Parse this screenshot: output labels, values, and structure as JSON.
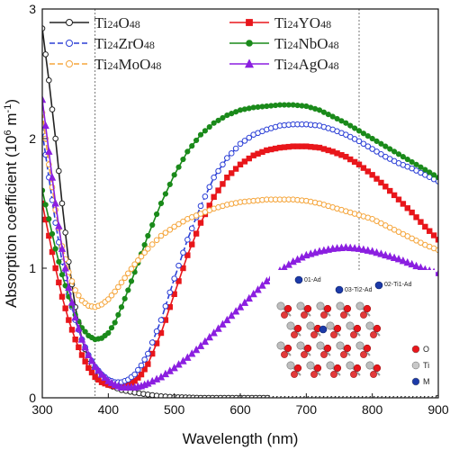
{
  "chart_data": {
    "type": "line",
    "xlabel": "Wavelength (nm)",
    "ylabel": "Absorption coefficient (10",
    "ylabel_sup": "6",
    "ylabel_unit": " m",
    "ylabel_unit_sup": "-1",
    "ylabel_close": ")",
    "xlim": [
      300,
      900
    ],
    "ylim": [
      0,
      3
    ],
    "x_ticks": [
      300,
      400,
      500,
      600,
      700,
      800,
      900
    ],
    "y_ticks": [
      0,
      1,
      2,
      3
    ],
    "x_tick_labels": [
      "300",
      "400",
      "500",
      "600",
      "700",
      "800",
      "900"
    ],
    "y_tick_labels": [
      "0",
      "1",
      "2",
      "3"
    ],
    "reference_lines_x": [
      380,
      780
    ],
    "legend_placement": "top",
    "series": [
      {
        "name": "Ti24O48",
        "base": "Ti",
        "sub1": "24",
        "mid": "O",
        "sub2": "48",
        "color": "#222222",
        "marker": "open-circle",
        "dash": "none",
        "points": [
          [
            300,
            2.85
          ],
          [
            310,
            2.45
          ],
          [
            320,
            2.0
          ],
          [
            330,
            1.5
          ],
          [
            340,
            1.05
          ],
          [
            350,
            0.7
          ],
          [
            360,
            0.45
          ],
          [
            370,
            0.3
          ],
          [
            380,
            0.2
          ],
          [
            390,
            0.14
          ],
          [
            400,
            0.1
          ],
          [
            420,
            0.06
          ],
          [
            440,
            0.04
          ],
          [
            460,
            0.025
          ],
          [
            480,
            0.012
          ],
          [
            500,
            0.005
          ],
          [
            540,
            0.0
          ],
          [
            600,
            0.0
          ],
          [
            700,
            0.0
          ],
          [
            800,
            0.0
          ],
          [
            900,
            0.0
          ]
        ]
      },
      {
        "name": "Ti24YO48",
        "base": "Ti",
        "sub1": "24",
        "mid": "YO",
        "sub2": "48",
        "color": "#e8161b",
        "marker": "square",
        "dash": "none",
        "points": [
          [
            300,
            1.5
          ],
          [
            310,
            1.25
          ],
          [
            320,
            1.0
          ],
          [
            330,
            0.78
          ],
          [
            340,
            0.6
          ],
          [
            350,
            0.45
          ],
          [
            360,
            0.33
          ],
          [
            370,
            0.23
          ],
          [
            380,
            0.16
          ],
          [
            390,
            0.12
          ],
          [
            400,
            0.1
          ],
          [
            410,
            0.09
          ],
          [
            420,
            0.09
          ],
          [
            430,
            0.1
          ],
          [
            440,
            0.13
          ],
          [
            450,
            0.18
          ],
          [
            460,
            0.26
          ],
          [
            480,
            0.5
          ],
          [
            500,
            0.8
          ],
          [
            520,
            1.1
          ],
          [
            540,
            1.35
          ],
          [
            560,
            1.55
          ],
          [
            580,
            1.7
          ],
          [
            600,
            1.8
          ],
          [
            620,
            1.87
          ],
          [
            640,
            1.91
          ],
          [
            660,
            1.93
          ],
          [
            680,
            1.94
          ],
          [
            700,
            1.94
          ],
          [
            720,
            1.93
          ],
          [
            740,
            1.9
          ],
          [
            760,
            1.86
          ],
          [
            780,
            1.8
          ],
          [
            800,
            1.72
          ],
          [
            820,
            1.63
          ],
          [
            840,
            1.53
          ],
          [
            860,
            1.43
          ],
          [
            880,
            1.32
          ],
          [
            900,
            1.22
          ]
        ]
      },
      {
        "name": "Ti24ZrO48",
        "base": "Ti",
        "sub1": "24",
        "mid": "ZrO",
        "sub2": "48",
        "color": "#2b3fd6",
        "marker": "open-circle",
        "dash": "6,3",
        "points": [
          [
            300,
            2.05
          ],
          [
            310,
            1.7
          ],
          [
            320,
            1.35
          ],
          [
            330,
            1.05
          ],
          [
            340,
            0.8
          ],
          [
            350,
            0.6
          ],
          [
            360,
            0.45
          ],
          [
            370,
            0.33
          ],
          [
            380,
            0.24
          ],
          [
            390,
            0.18
          ],
          [
            400,
            0.14
          ],
          [
            410,
            0.12
          ],
          [
            420,
            0.12
          ],
          [
            430,
            0.14
          ],
          [
            440,
            0.18
          ],
          [
            450,
            0.25
          ],
          [
            460,
            0.34
          ],
          [
            480,
            0.6
          ],
          [
            500,
            0.92
          ],
          [
            520,
            1.22
          ],
          [
            540,
            1.48
          ],
          [
            560,
            1.7
          ],
          [
            580,
            1.85
          ],
          [
            600,
            1.96
          ],
          [
            620,
            2.03
          ],
          [
            640,
            2.07
          ],
          [
            660,
            2.1
          ],
          [
            680,
            2.11
          ],
          [
            700,
            2.11
          ],
          [
            720,
            2.1
          ],
          [
            740,
            2.07
          ],
          [
            760,
            2.03
          ],
          [
            780,
            1.98
          ],
          [
            800,
            1.92
          ],
          [
            820,
            1.86
          ],
          [
            840,
            1.81
          ],
          [
            860,
            1.77
          ],
          [
            880,
            1.72
          ],
          [
            900,
            1.67
          ]
        ]
      },
      {
        "name": "Ti24NbO48",
        "base": "Ti",
        "sub1": "24",
        "mid": "NbO",
        "sub2": "48",
        "color": "#1a8a1a",
        "marker": "filled-circle",
        "dash": "none",
        "points": [
          [
            300,
            1.6
          ],
          [
            310,
            1.38
          ],
          [
            320,
            1.15
          ],
          [
            330,
            0.95
          ],
          [
            340,
            0.78
          ],
          [
            350,
            0.64
          ],
          [
            360,
            0.54
          ],
          [
            370,
            0.48
          ],
          [
            380,
            0.45
          ],
          [
            390,
            0.46
          ],
          [
            400,
            0.5
          ],
          [
            410,
            0.58
          ],
          [
            420,
            0.7
          ],
          [
            430,
            0.83
          ],
          [
            440,
            0.97
          ],
          [
            450,
            1.11
          ],
          [
            460,
            1.25
          ],
          [
            480,
            1.5
          ],
          [
            500,
            1.72
          ],
          [
            520,
            1.9
          ],
          [
            540,
            2.03
          ],
          [
            560,
            2.12
          ],
          [
            580,
            2.18
          ],
          [
            600,
            2.22
          ],
          [
            620,
            2.24
          ],
          [
            640,
            2.25
          ],
          [
            660,
            2.26
          ],
          [
            680,
            2.26
          ],
          [
            700,
            2.25
          ],
          [
            720,
            2.22
          ],
          [
            740,
            2.17
          ],
          [
            760,
            2.12
          ],
          [
            780,
            2.06
          ],
          [
            800,
            2.0
          ],
          [
            820,
            1.94
          ],
          [
            840,
            1.88
          ],
          [
            860,
            1.82
          ],
          [
            880,
            1.76
          ],
          [
            900,
            1.7
          ]
        ]
      },
      {
        "name": "Ti24MoO48",
        "base": "Ti",
        "sub1": "24",
        "mid": "MoO",
        "sub2": "48",
        "color": "#f5a53b",
        "marker": "open-circle",
        "dash": "6,3",
        "points": [
          [
            300,
            2.2
          ],
          [
            310,
            1.8
          ],
          [
            320,
            1.45
          ],
          [
            330,
            1.17
          ],
          [
            340,
            0.97
          ],
          [
            350,
            0.83
          ],
          [
            360,
            0.75
          ],
          [
            370,
            0.71
          ],
          [
            380,
            0.7
          ],
          [
            390,
            0.72
          ],
          [
            400,
            0.76
          ],
          [
            410,
            0.82
          ],
          [
            420,
            0.89
          ],
          [
            430,
            0.96
          ],
          [
            440,
            1.03
          ],
          [
            450,
            1.09
          ],
          [
            460,
            1.15
          ],
          [
            480,
            1.25
          ],
          [
            500,
            1.32
          ],
          [
            520,
            1.38
          ],
          [
            540,
            1.42
          ],
          [
            560,
            1.46
          ],
          [
            580,
            1.49
          ],
          [
            600,
            1.51
          ],
          [
            620,
            1.52
          ],
          [
            640,
            1.53
          ],
          [
            660,
            1.53
          ],
          [
            680,
            1.53
          ],
          [
            700,
            1.52
          ],
          [
            720,
            1.5
          ],
          [
            740,
            1.47
          ],
          [
            760,
            1.44
          ],
          [
            780,
            1.41
          ],
          [
            800,
            1.38
          ],
          [
            820,
            1.33
          ],
          [
            840,
            1.28
          ],
          [
            860,
            1.23
          ],
          [
            880,
            1.18
          ],
          [
            900,
            1.14
          ]
        ]
      },
      {
        "name": "Ti24AgO48",
        "base": "Ti",
        "sub1": "24",
        "mid": "AgO",
        "sub2": "48",
        "color": "#8b1fe0",
        "marker": "triangle",
        "dash": "none",
        "points": [
          [
            300,
            2.3
          ],
          [
            310,
            1.9
          ],
          [
            320,
            1.5
          ],
          [
            330,
            1.15
          ],
          [
            340,
            0.85
          ],
          [
            350,
            0.62
          ],
          [
            360,
            0.45
          ],
          [
            370,
            0.33
          ],
          [
            380,
            0.24
          ],
          [
            390,
            0.18
          ],
          [
            400,
            0.13
          ],
          [
            410,
            0.1
          ],
          [
            420,
            0.08
          ],
          [
            430,
            0.08
          ],
          [
            440,
            0.08
          ],
          [
            450,
            0.09
          ],
          [
            460,
            0.11
          ],
          [
            480,
            0.16
          ],
          [
            500,
            0.23
          ],
          [
            520,
            0.31
          ],
          [
            540,
            0.4
          ],
          [
            560,
            0.5
          ],
          [
            580,
            0.6
          ],
          [
            600,
            0.7
          ],
          [
            620,
            0.8
          ],
          [
            640,
            0.9
          ],
          [
            660,
            0.98
          ],
          [
            680,
            1.05
          ],
          [
            700,
            1.1
          ],
          [
            720,
            1.13
          ],
          [
            740,
            1.15
          ],
          [
            760,
            1.16
          ],
          [
            780,
            1.15
          ],
          [
            800,
            1.13
          ],
          [
            820,
            1.1
          ],
          [
            840,
            1.07
          ],
          [
            860,
            1.03
          ],
          [
            880,
            0.99
          ],
          [
            900,
            0.96
          ]
        ]
      }
    ]
  },
  "inset": {
    "labels": [
      {
        "text": "01-Ad"
      },
      {
        "text": "03-Ti2-Ad"
      },
      {
        "text": "02-Ti1-Ad"
      }
    ],
    "legend": [
      {
        "label": "O",
        "color": "#e8161b"
      },
      {
        "label": "Ti",
        "color": "#c8c8c8"
      },
      {
        "label": "M",
        "color": "#1c3aa8"
      }
    ]
  }
}
